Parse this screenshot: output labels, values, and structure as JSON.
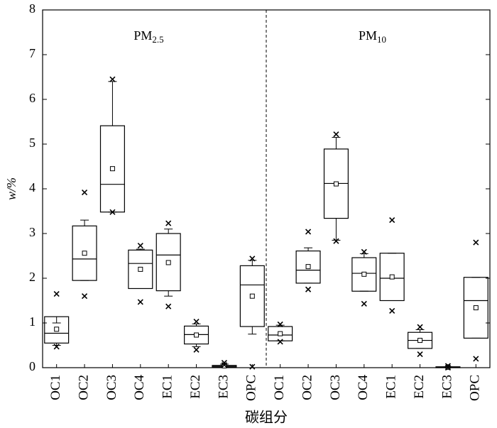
{
  "chart_data": {
    "type": "box",
    "ylabel": "w/%",
    "xlabel": "碳组分",
    "annotations": [
      {
        "text": "PM",
        "sub": "2.5"
      },
      {
        "text": "PM",
        "sub": "10"
      }
    ],
    "categories": [
      "OC1",
      "OC2",
      "OC3",
      "OC4",
      "EC1",
      "EC2",
      "EC3",
      "OPC",
      "OC1",
      "OC2",
      "OC3",
      "OC4",
      "EC1",
      "EC2",
      "EC3",
      "OPC"
    ],
    "q1": [
      0.55,
      1.95,
      3.48,
      1.77,
      1.72,
      0.53,
      0.01,
      0.92,
      0.6,
      1.89,
      3.34,
      1.71,
      1.5,
      0.43,
      0.0,
      0.66
    ],
    "median": [
      0.77,
      2.43,
      4.1,
      2.33,
      2.52,
      0.74,
      0.03,
      1.85,
      0.73,
      2.18,
      4.12,
      2.11,
      2.0,
      0.61,
      0.01,
      1.5
    ],
    "q3": [
      1.14,
      3.17,
      5.41,
      2.63,
      3.0,
      0.93,
      0.05,
      2.28,
      0.92,
      2.61,
      4.89,
      2.46,
      2.56,
      0.79,
      0.02,
      2.02
    ],
    "whisker_low": [
      0.5,
      1.95,
      3.48,
      1.77,
      1.6,
      0.47,
      0.0,
      0.75,
      0.6,
      1.89,
      2.85,
      1.71,
      1.5,
      0.43,
      0.0,
      0.66
    ],
    "whisker_high": [
      1.0,
      3.3,
      6.4,
      2.65,
      3.1,
      0.98,
      0.08,
      2.4,
      0.95,
      2.68,
      5.15,
      2.55,
      2.56,
      0.85,
      0.02,
      2.02
    ],
    "mean": [
      0.86,
      2.56,
      4.45,
      2.2,
      2.35,
      0.73,
      0.04,
      1.6,
      0.76,
      2.26,
      4.11,
      2.09,
      2.03,
      0.61,
      0.01,
      1.34
    ],
    "min": [
      0.47,
      1.6,
      3.48,
      1.47,
      1.37,
      0.4,
      0.06,
      0.02,
      0.58,
      1.75,
      2.83,
      1.43,
      1.27,
      0.3,
      0.0,
      0.2
    ],
    "max": [
      1.65,
      3.92,
      6.45,
      2.73,
      3.23,
      1.03,
      0.11,
      2.44,
      0.97,
      3.04,
      5.22,
      2.59,
      3.3,
      0.91,
      0.04,
      2.8
    ],
    "ylim": [
      0,
      8
    ],
    "yticks": [
      0,
      1,
      2,
      3,
      4,
      5,
      6,
      7,
      8
    ],
    "color": "#000000"
  }
}
